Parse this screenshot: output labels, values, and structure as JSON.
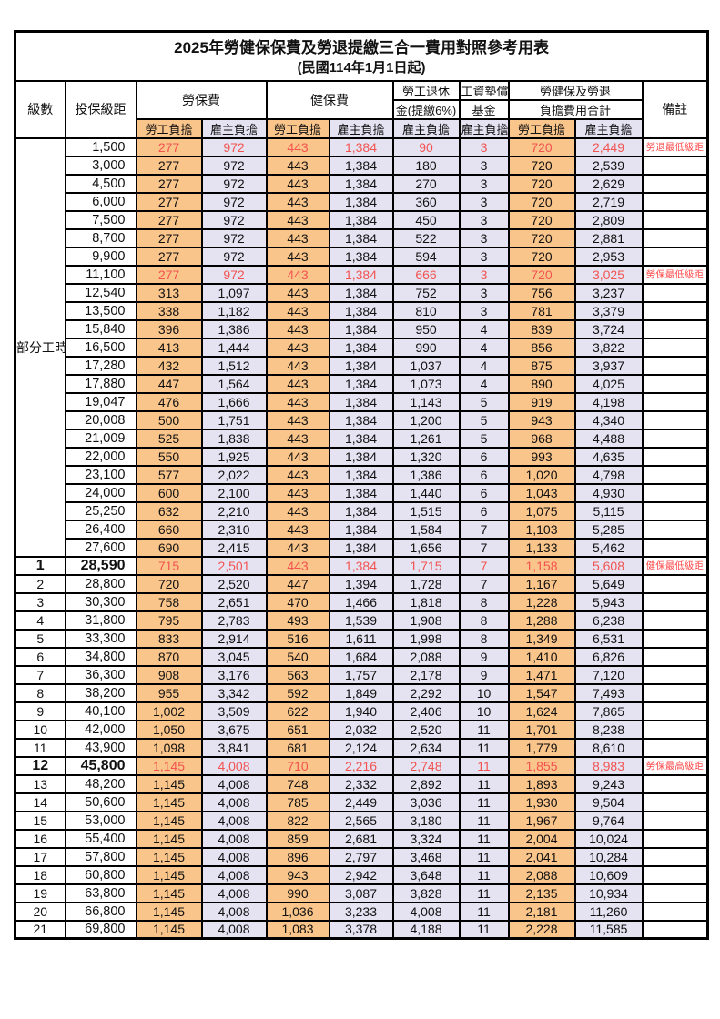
{
  "title": "2025年勞健保保費及勞退提繳三合一費用對照參考用表",
  "subtitle": "(民國114年1月1日起)",
  "colors": {
    "employee_bg": "#FAC58A",
    "employer_bg": "#E5E3F2",
    "highlight_text": "#F25350",
    "remark_text": "#FF4A4A",
    "border": "#000000"
  },
  "header": {
    "level": "級數",
    "salary": "投保級距",
    "labor_fee": "勞保費",
    "health_fee": "健保費",
    "pension_line1": "勞工退休",
    "pension_line2": "金(提繳6%)",
    "arrear_line1": "工資墊償",
    "arrear_line2": "基金",
    "total_line1": "勞健保及勞退",
    "total_line2": "負擔費用合計",
    "remark": "備註",
    "employee": "勞工負擔",
    "employer": "雇主負擔"
  },
  "table": {
    "part_time_label": "部分工時",
    "part_time_rowspan": 23,
    "rows": [
      {
        "level": "",
        "salary": "1,500",
        "values": [
          "277",
          "972",
          "443",
          "1,384",
          "90",
          "3",
          "720",
          "2,449"
        ],
        "remark": "勞退最低級距",
        "highlight": true,
        "bold": false
      },
      {
        "level": "",
        "salary": "3,000",
        "values": [
          "277",
          "972",
          "443",
          "1,384",
          "180",
          "3",
          "720",
          "2,539"
        ],
        "remark": "",
        "highlight": false,
        "bold": false
      },
      {
        "level": "",
        "salary": "4,500",
        "values": [
          "277",
          "972",
          "443",
          "1,384",
          "270",
          "3",
          "720",
          "2,629"
        ],
        "remark": "",
        "highlight": false,
        "bold": false
      },
      {
        "level": "",
        "salary": "6,000",
        "values": [
          "277",
          "972",
          "443",
          "1,384",
          "360",
          "3",
          "720",
          "2,719"
        ],
        "remark": "",
        "highlight": false,
        "bold": false
      },
      {
        "level": "",
        "salary": "7,500",
        "values": [
          "277",
          "972",
          "443",
          "1,384",
          "450",
          "3",
          "720",
          "2,809"
        ],
        "remark": "",
        "highlight": false,
        "bold": false
      },
      {
        "level": "",
        "salary": "8,700",
        "values": [
          "277",
          "972",
          "443",
          "1,384",
          "522",
          "3",
          "720",
          "2,881"
        ],
        "remark": "",
        "highlight": false,
        "bold": false
      },
      {
        "level": "",
        "salary": "9,900",
        "values": [
          "277",
          "972",
          "443",
          "1,384",
          "594",
          "3",
          "720",
          "2,953"
        ],
        "remark": "",
        "highlight": false,
        "bold": false
      },
      {
        "level": "",
        "salary": "11,100",
        "values": [
          "277",
          "972",
          "443",
          "1,384",
          "666",
          "3",
          "720",
          "3,025"
        ],
        "remark": "勞保最低級距",
        "highlight": true,
        "bold": false
      },
      {
        "level": "",
        "salary": "12,540",
        "values": [
          "313",
          "1,097",
          "443",
          "1,384",
          "752",
          "3",
          "756",
          "3,237"
        ],
        "remark": "",
        "highlight": false,
        "bold": false
      },
      {
        "level": "",
        "salary": "13,500",
        "values": [
          "338",
          "1,182",
          "443",
          "1,384",
          "810",
          "3",
          "781",
          "3,379"
        ],
        "remark": "",
        "highlight": false,
        "bold": false
      },
      {
        "level": "",
        "salary": "15,840",
        "values": [
          "396",
          "1,386",
          "443",
          "1,384",
          "950",
          "4",
          "839",
          "3,724"
        ],
        "remark": "",
        "highlight": false,
        "bold": false
      },
      {
        "level": "",
        "salary": "16,500",
        "values": [
          "413",
          "1,444",
          "443",
          "1,384",
          "990",
          "4",
          "856",
          "3,822"
        ],
        "remark": "",
        "highlight": false,
        "bold": false
      },
      {
        "level": "",
        "salary": "17,280",
        "values": [
          "432",
          "1,512",
          "443",
          "1,384",
          "1,037",
          "4",
          "875",
          "3,937"
        ],
        "remark": "",
        "highlight": false,
        "bold": false
      },
      {
        "level": "",
        "salary": "17,880",
        "values": [
          "447",
          "1,564",
          "443",
          "1,384",
          "1,073",
          "4",
          "890",
          "4,025"
        ],
        "remark": "",
        "highlight": false,
        "bold": false
      },
      {
        "level": "",
        "salary": "19,047",
        "values": [
          "476",
          "1,666",
          "443",
          "1,384",
          "1,143",
          "5",
          "919",
          "4,198"
        ],
        "remark": "",
        "highlight": false,
        "bold": false
      },
      {
        "level": "",
        "salary": "20,008",
        "values": [
          "500",
          "1,751",
          "443",
          "1,384",
          "1,200",
          "5",
          "943",
          "4,340"
        ],
        "remark": "",
        "highlight": false,
        "bold": false
      },
      {
        "level": "",
        "salary": "21,009",
        "values": [
          "525",
          "1,838",
          "443",
          "1,384",
          "1,261",
          "5",
          "968",
          "4,488"
        ],
        "remark": "",
        "highlight": false,
        "bold": false
      },
      {
        "level": "",
        "salary": "22,000",
        "values": [
          "550",
          "1,925",
          "443",
          "1,384",
          "1,320",
          "6",
          "993",
          "4,635"
        ],
        "remark": "",
        "highlight": false,
        "bold": false
      },
      {
        "level": "",
        "salary": "23,100",
        "values": [
          "577",
          "2,022",
          "443",
          "1,384",
          "1,386",
          "6",
          "1,020",
          "4,798"
        ],
        "remark": "",
        "highlight": false,
        "bold": false
      },
      {
        "level": "",
        "salary": "24,000",
        "values": [
          "600",
          "2,100",
          "443",
          "1,384",
          "1,440",
          "6",
          "1,043",
          "4,930"
        ],
        "remark": "",
        "highlight": false,
        "bold": false
      },
      {
        "level": "",
        "salary": "25,250",
        "values": [
          "632",
          "2,210",
          "443",
          "1,384",
          "1,515",
          "6",
          "1,075",
          "5,115"
        ],
        "remark": "",
        "highlight": false,
        "bold": false
      },
      {
        "level": "",
        "salary": "26,400",
        "values": [
          "660",
          "2,310",
          "443",
          "1,384",
          "1,584",
          "7",
          "1,103",
          "5,285"
        ],
        "remark": "",
        "highlight": false,
        "bold": false
      },
      {
        "level": "",
        "salary": "27,600",
        "values": [
          "690",
          "2,415",
          "443",
          "1,384",
          "1,656",
          "7",
          "1,133",
          "5,462"
        ],
        "remark": "",
        "highlight": false,
        "bold": false
      },
      {
        "level": "1",
        "salary": "28,590",
        "values": [
          "715",
          "2,501",
          "443",
          "1,384",
          "1,715",
          "7",
          "1,158",
          "5,608"
        ],
        "remark": "健保最低級距",
        "highlight": true,
        "bold": true
      },
      {
        "level": "2",
        "salary": "28,800",
        "values": [
          "720",
          "2,520",
          "447",
          "1,394",
          "1,728",
          "7",
          "1,167",
          "5,649"
        ],
        "remark": "",
        "highlight": false,
        "bold": false
      },
      {
        "level": "3",
        "salary": "30,300",
        "values": [
          "758",
          "2,651",
          "470",
          "1,466",
          "1,818",
          "8",
          "1,228",
          "5,943"
        ],
        "remark": "",
        "highlight": false,
        "bold": false
      },
      {
        "level": "4",
        "salary": "31,800",
        "values": [
          "795",
          "2,783",
          "493",
          "1,539",
          "1,908",
          "8",
          "1,288",
          "6,238"
        ],
        "remark": "",
        "highlight": false,
        "bold": false
      },
      {
        "level": "5",
        "salary": "33,300",
        "values": [
          "833",
          "2,914",
          "516",
          "1,611",
          "1,998",
          "8",
          "1,349",
          "6,531"
        ],
        "remark": "",
        "highlight": false,
        "bold": false
      },
      {
        "level": "6",
        "salary": "34,800",
        "values": [
          "870",
          "3,045",
          "540",
          "1,684",
          "2,088",
          "9",
          "1,410",
          "6,826"
        ],
        "remark": "",
        "highlight": false,
        "bold": false
      },
      {
        "level": "7",
        "salary": "36,300",
        "values": [
          "908",
          "3,176",
          "563",
          "1,757",
          "2,178",
          "9",
          "1,471",
          "7,120"
        ],
        "remark": "",
        "highlight": false,
        "bold": false
      },
      {
        "level": "8",
        "salary": "38,200",
        "values": [
          "955",
          "3,342",
          "592",
          "1,849",
          "2,292",
          "10",
          "1,547",
          "7,493"
        ],
        "remark": "",
        "highlight": false,
        "bold": false
      },
      {
        "level": "9",
        "salary": "40,100",
        "values": [
          "1,002",
          "3,509",
          "622",
          "1,940",
          "2,406",
          "10",
          "1,624",
          "7,865"
        ],
        "remark": "",
        "highlight": false,
        "bold": false
      },
      {
        "level": "10",
        "salary": "42,000",
        "values": [
          "1,050",
          "3,675",
          "651",
          "2,032",
          "2,520",
          "11",
          "1,701",
          "8,238"
        ],
        "remark": "",
        "highlight": false,
        "bold": false
      },
      {
        "level": "11",
        "salary": "43,900",
        "values": [
          "1,098",
          "3,841",
          "681",
          "2,124",
          "2,634",
          "11",
          "1,779",
          "8,610"
        ],
        "remark": "",
        "highlight": false,
        "bold": false
      },
      {
        "level": "12",
        "salary": "45,800",
        "values": [
          "1,145",
          "4,008",
          "710",
          "2,216",
          "2,748",
          "11",
          "1,855",
          "8,983"
        ],
        "remark": "勞保最高級距",
        "highlight": true,
        "bold": true
      },
      {
        "level": "13",
        "salary": "48,200",
        "values": [
          "1,145",
          "4,008",
          "748",
          "2,332",
          "2,892",
          "11",
          "1,893",
          "9,243"
        ],
        "remark": "",
        "highlight": false,
        "bold": false
      },
      {
        "level": "14",
        "salary": "50,600",
        "values": [
          "1,145",
          "4,008",
          "785",
          "2,449",
          "3,036",
          "11",
          "1,930",
          "9,504"
        ],
        "remark": "",
        "highlight": false,
        "bold": false
      },
      {
        "level": "15",
        "salary": "53,000",
        "values": [
          "1,145",
          "4,008",
          "822",
          "2,565",
          "3,180",
          "11",
          "1,967",
          "9,764"
        ],
        "remark": "",
        "highlight": false,
        "bold": false
      },
      {
        "level": "16",
        "salary": "55,400",
        "values": [
          "1,145",
          "4,008",
          "859",
          "2,681",
          "3,324",
          "11",
          "2,004",
          "10,024"
        ],
        "remark": "",
        "highlight": false,
        "bold": false
      },
      {
        "level": "17",
        "salary": "57,800",
        "values": [
          "1,145",
          "4,008",
          "896",
          "2,797",
          "3,468",
          "11",
          "2,041",
          "10,284"
        ],
        "remark": "",
        "highlight": false,
        "bold": false
      },
      {
        "level": "18",
        "salary": "60,800",
        "values": [
          "1,145",
          "4,008",
          "943",
          "2,942",
          "3,648",
          "11",
          "2,088",
          "10,609"
        ],
        "remark": "",
        "highlight": false,
        "bold": false
      },
      {
        "level": "19",
        "salary": "63,800",
        "values": [
          "1,145",
          "4,008",
          "990",
          "3,087",
          "3,828",
          "11",
          "2,135",
          "10,934"
        ],
        "remark": "",
        "highlight": false,
        "bold": false
      },
      {
        "level": "20",
        "salary": "66,800",
        "values": [
          "1,145",
          "4,008",
          "1,036",
          "3,233",
          "4,008",
          "11",
          "2,181",
          "11,260"
        ],
        "remark": "",
        "highlight": false,
        "bold": false
      },
      {
        "level": "21",
        "salary": "69,800",
        "values": [
          "1,145",
          "4,008",
          "1,083",
          "3,378",
          "4,188",
          "11",
          "2,228",
          "11,585"
        ],
        "remark": "",
        "highlight": false,
        "bold": false
      }
    ]
  }
}
